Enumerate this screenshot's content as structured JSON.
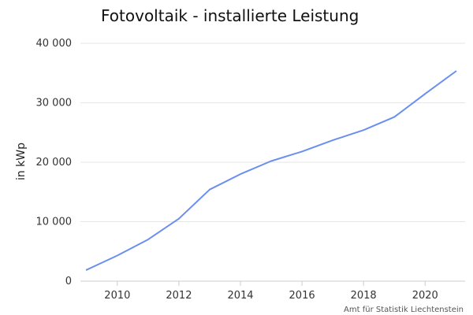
{
  "chart_data": {
    "type": "line",
    "title": "Fotovoltaik - installierte Leistung",
    "xlabel": "",
    "ylabel": "in kWp",
    "source": "Amt für Statistik Liechtenstein",
    "x": [
      2009,
      2010,
      2011,
      2012,
      2013,
      2014,
      2015,
      2016,
      2017,
      2018,
      2019,
      2020,
      2021
    ],
    "series": [
      {
        "color": "#6a8ff0",
        "values": [
          1900,
          4300,
          7000,
          10500,
          15400,
          18000,
          20200,
          21800,
          23700,
          25400,
          27600,
          31500,
          35300
        ]
      }
    ],
    "xlim": [
      2008.8,
      2021.3
    ],
    "ylim": [
      0,
      40000
    ],
    "xticks": [
      2010,
      2012,
      2014,
      2016,
      2018,
      2020
    ],
    "xtick_labels": [
      "2010",
      "2012",
      "2014",
      "2016",
      "2018",
      "2020"
    ],
    "yticks": [
      0,
      10000,
      20000,
      30000,
      40000
    ],
    "ytick_labels": [
      "0",
      "10 000",
      "20 000",
      "30 000",
      "40 000"
    ],
    "grid": true,
    "legend": "none",
    "colors": {
      "grid": "#e6e6e6",
      "axis": "#cccccc",
      "line": "#6a8ff0"
    }
  }
}
